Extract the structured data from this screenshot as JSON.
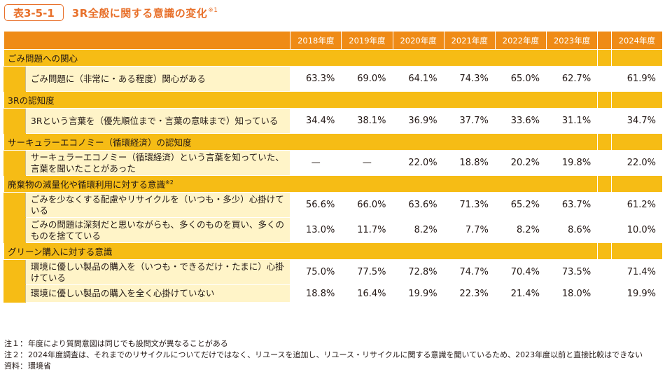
{
  "title": {
    "badge": "表3-5-1",
    "text": "3R全般に関する意識の変化",
    "note_mark": "※1"
  },
  "header": {
    "years": [
      "2018年度",
      "2019年度",
      "2020年度",
      "2021年度",
      "2022年度",
      "2023年度",
      "2024年度"
    ]
  },
  "sections": [
    {
      "category": "ごみ問題への関心",
      "note_mark": "",
      "rows": [
        {
          "label": "ごみ問題に（非常に・ある程度）関心がある",
          "values": [
            "63.3%",
            "69.0%",
            "64.1%",
            "74.3%",
            "65.0%",
            "62.7%",
            "61.9%"
          ]
        }
      ]
    },
    {
      "category": "3Rの認知度",
      "note_mark": "",
      "rows": [
        {
          "label": "3Rという言葉を（優先順位まで・言葉の意味まで）知っている",
          "values": [
            "34.4%",
            "38.1%",
            "36.9%",
            "37.7%",
            "33.6%",
            "31.1%",
            "34.7%"
          ]
        }
      ]
    },
    {
      "category": "サーキュラーエコノミー（循環経済）の認知度",
      "note_mark": "",
      "rows": [
        {
          "label": "サーキュラーエコノミー（循環経済）という言葉を知っていた、言葉を聞いたことがあった",
          "values": [
            "—",
            "—",
            "22.0%",
            "18.8%",
            "20.2%",
            "19.8%",
            "22.0%"
          ]
        }
      ]
    },
    {
      "category": "廃棄物の減量化や循環利用に対する意識",
      "note_mark": "※2",
      "rows": [
        {
          "label": "ごみを少なくする配慮やリサイクルを（いつも・多少）心掛けている",
          "values": [
            "56.6%",
            "66.0%",
            "63.6%",
            "71.3%",
            "65.2%",
            "63.7%",
            "61.2%"
          ]
        },
        {
          "label": "ごみの問題は深刻だと思いながらも、多くのものを買い、多くのものを捨てている",
          "values": [
            "13.0%",
            "11.7%",
            "8.2%",
            "7.7%",
            "8.2%",
            "8.6%",
            "10.0%"
          ]
        }
      ]
    },
    {
      "category": "グリーン購入に対する意識",
      "note_mark": "",
      "rows": [
        {
          "label": "環境に優しい製品の購入を（いつも・できるだけ・たまに）心掛けている",
          "values": [
            "75.0%",
            "77.5%",
            "72.8%",
            "74.7%",
            "70.4%",
            "73.5%",
            "71.4%"
          ]
        },
        {
          "label": "環境に優しい製品の購入を全く心掛けていない",
          "values": [
            "18.8%",
            "16.4%",
            "19.9%",
            "22.3%",
            "21.4%",
            "18.0%",
            "19.9%"
          ],
          "short": true
        }
      ]
    }
  ],
  "notes": [
    {
      "key": "注１：",
      "text": "年度により質問意図は同じでも設問文が異なることがある"
    },
    {
      "key": "注２：",
      "text": "2024年度調査は、それまでのリサイクルについてだけではなく、リユースを追加し、リユース・リサイクルに関する意識を聞いているため、2023年度以前と直接比較はできない"
    },
    {
      "key": "資料：",
      "text": "環境省"
    }
  ]
}
